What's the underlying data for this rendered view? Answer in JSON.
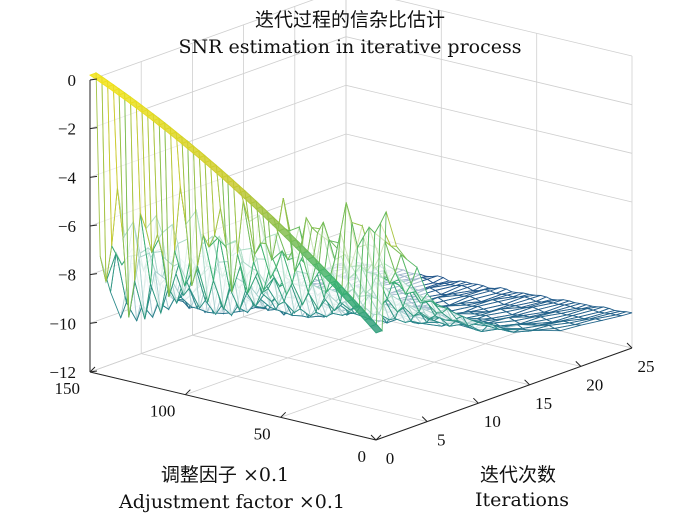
{
  "chart_data": {
    "type": "surface3d",
    "title": "迭代过程的信杂比估计",
    "subtitle": "SNR estimation in iterative process",
    "xlabel": "迭代次数",
    "xlabel_en": "Iterations",
    "ylabel": "调整因子 ×0.1",
    "ylabel_en": "Adjustment factor ×0.1",
    "zlabel": "",
    "x_ticks": [
      "0",
      "5",
      "10",
      "15",
      "20",
      "25"
    ],
    "y_ticks": [
      "0",
      "50",
      "100",
      "150"
    ],
    "z_ticks": [
      "0",
      "−2",
      "−4",
      "−6",
      "−8",
      "−10",
      "−12"
    ],
    "xlim": [
      0,
      25
    ],
    "ylim": [
      0,
      150
    ],
    "zlim": [
      -12,
      0
    ],
    "grid": true,
    "colormap": [
      "#1f3b8c",
      "#2a8a8a",
      "#3cb371",
      "#c9c930",
      "#f2e31a"
    ]
  }
}
